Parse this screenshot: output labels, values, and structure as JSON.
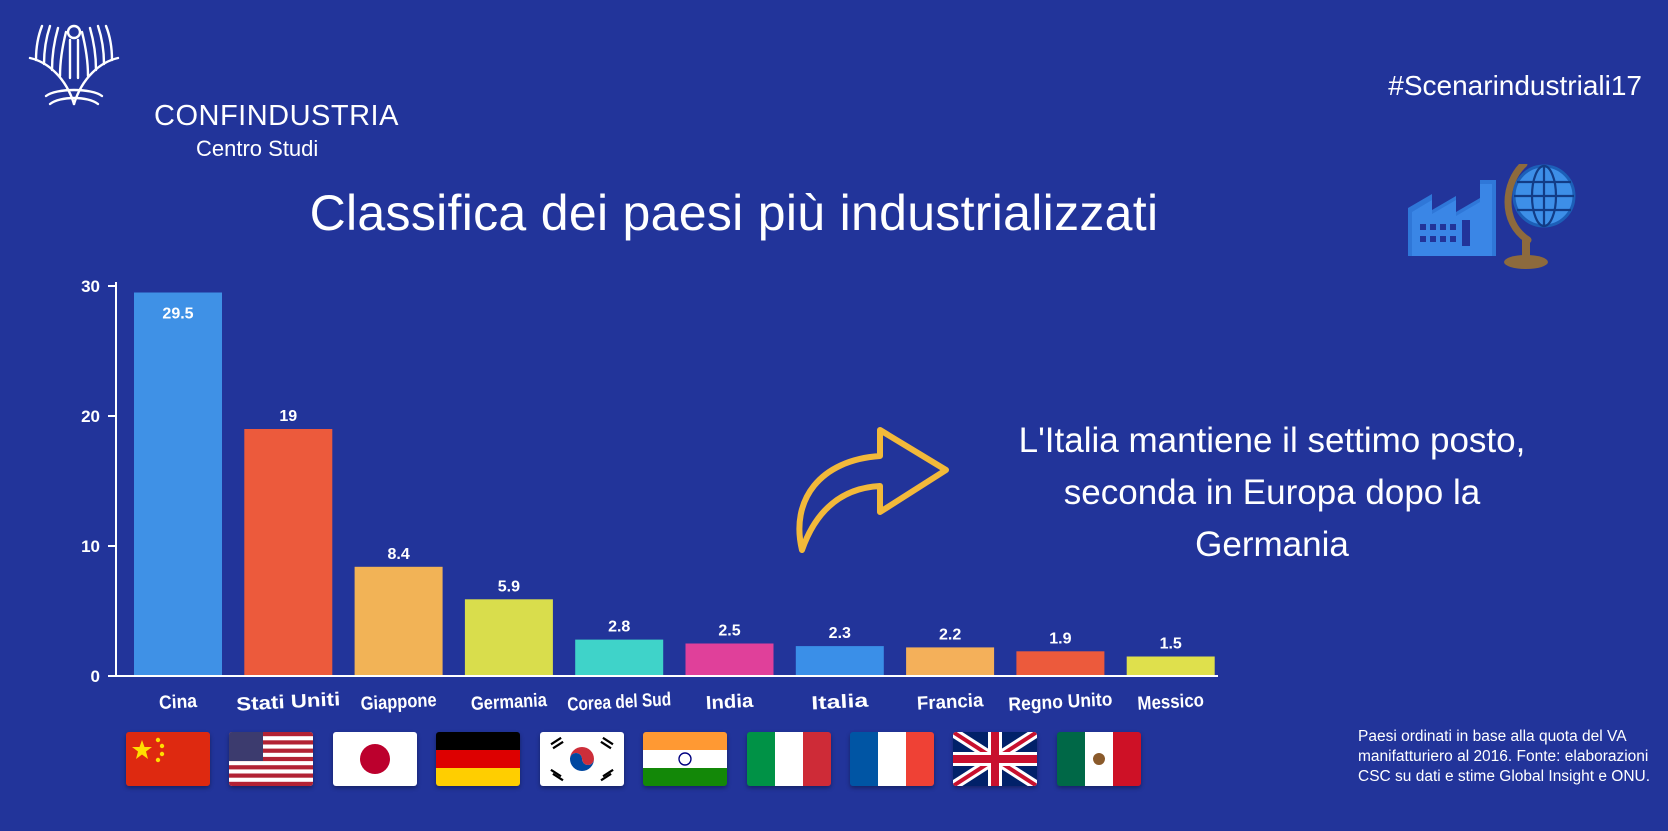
{
  "header": {
    "org_name": "CONFINDUSTRIA",
    "org_sub": "Centro Studi",
    "hashtag": "#Scenarindustriali17"
  },
  "title": "Classifica dei paesi più industrializzati",
  "note": "L'Italia mantiene il settimo posto, seconda in Europa dopo la Germania",
  "source": "Paesi ordinati in base alla quota del VA manifatturiero al 2016. Fonte: elaborazioni CSC su dati e stime Global Insight e ONU.",
  "icons": {
    "logo": "confindustria-eagle-logo",
    "decoration": "factory-globe-icon",
    "arrow": "curved-arrow-icon"
  },
  "colors": {
    "background": "#22349a",
    "axis": "#ffffff",
    "arrow": "#f2b93a"
  },
  "chart_data": {
    "type": "bar",
    "categories": [
      "Cina",
      "Stati Uniti",
      "Giappone",
      "Germania",
      "Corea del Sud",
      "India",
      "Italia",
      "Francia",
      "Regno Unito",
      "Messico"
    ],
    "values": [
      29.5,
      19,
      8.4,
      5.9,
      2.8,
      2.5,
      2.3,
      2.2,
      1.9,
      1.5
    ],
    "data_labels": [
      "29.5",
      "19",
      "8.4",
      "5.9",
      "2.8",
      "2.5",
      "2.3",
      "2.2",
      "1.9",
      "1.5"
    ],
    "bar_colors": [
      "#3f91e6",
      "#ec5a3c",
      "#f2b356",
      "#d9dd4c",
      "#3fd3c9",
      "#e0409a",
      "#3a8fe8",
      "#f4b05a",
      "#ec5a3c",
      "#dfe04c"
    ],
    "yticks": [
      0,
      10,
      20,
      30
    ],
    "ylim": [
      0,
      30
    ],
    "grid": false,
    "flags": [
      "china-flag",
      "usa-flag",
      "japan-flag",
      "germany-flag",
      "south-korea-flag",
      "india-flag",
      "italy-flag",
      "france-flag",
      "uk-flag",
      "mexico-flag"
    ]
  }
}
